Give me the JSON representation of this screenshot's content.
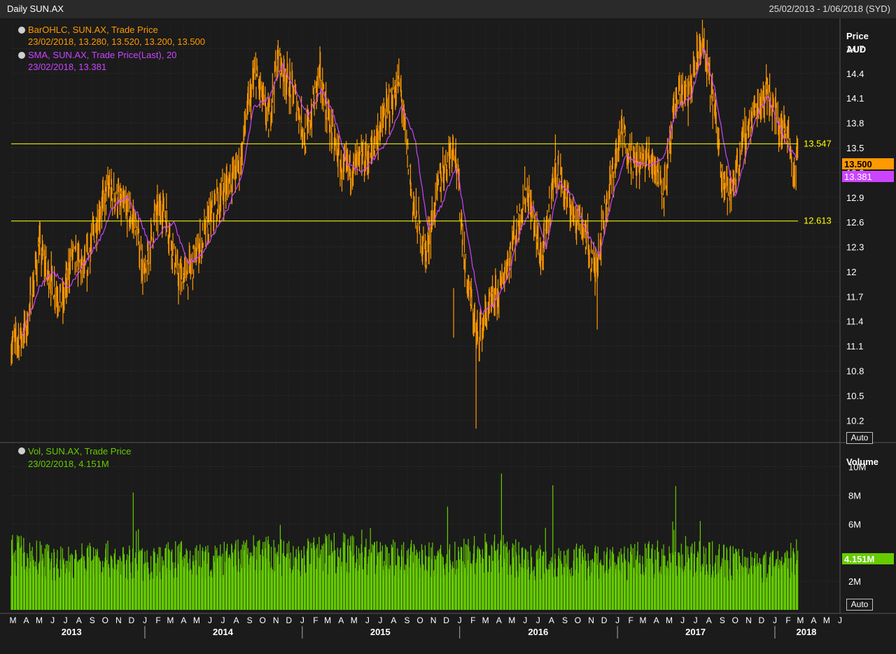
{
  "window": {
    "title": "Daily SUN.AX",
    "date_range": "25/02/2013 - 1/06/2018 (SYD)"
  },
  "price_panel": {
    "legend": [
      {
        "label": "BarOHLC, SUN.AX, Trade Price",
        "values": "23/02/2018, 13.280, 13.520, 13.200, 13.500",
        "color": "#ff9900"
      },
      {
        "label": "SMA, SUN.AX, Trade Price(Last),  20",
        "values": "23/02/2018, 13.381",
        "color": "#cc44ff"
      }
    ],
    "axis_title": "Price",
    "axis_unit": "AUD",
    "last_price_badge": "13.500",
    "sma_badge": "13.381",
    "auto_label": "Auto"
  },
  "volume_panel": {
    "legend": {
      "label": "Vol, SUN.AX, Trade Price",
      "values": "23/02/2018, 4.151M",
      "color": "#66cc00"
    },
    "axis_title": "Volume",
    "last_volume_badge": "4.151M",
    "auto_label": "Auto"
  },
  "colors": {
    "background": "#1b1b1b",
    "grid": "#333333",
    "price": "#ff9900",
    "sma": "#cc44ff",
    "volume": "#66cc00",
    "hline": "#ffff00"
  },
  "chart_data": [
    {
      "type": "line",
      "title": "Daily SUN.AX",
      "ylabel": "Price AUD",
      "ylim": [
        10.1,
        15.0
      ],
      "y_ticks": [
        "14.7",
        "14.4",
        "14.1",
        "13.8",
        "13.5",
        "13.2",
        "12.9",
        "12.6",
        "12.3",
        "12",
        "11.7",
        "11.4",
        "11.1",
        "10.8",
        "10.5",
        "10.2"
      ],
      "x_month_labels": [
        "M",
        "A",
        "M",
        "J",
        "J",
        "A",
        "S",
        "O",
        "N",
        "D",
        "J",
        "F",
        "M",
        "A",
        "M",
        "J",
        "J",
        "A",
        "S",
        "O",
        "N",
        "D",
        "J",
        "F",
        "M",
        "A",
        "M",
        "J",
        "J",
        "A",
        "S",
        "O",
        "N",
        "D",
        "J",
        "F",
        "M",
        "A",
        "M",
        "J",
        "J",
        "A",
        "S",
        "O",
        "N",
        "D",
        "J",
        "F",
        "M",
        "A",
        "M",
        "J",
        "J",
        "A",
        "S",
        "O",
        "N",
        "D",
        "J",
        "F",
        "M",
        "A",
        "M",
        "J"
      ],
      "x_year_labels": [
        "2013",
        "2014",
        "2015",
        "2016",
        "2017",
        "2018"
      ],
      "x_domain": [
        "2013-02-25",
        "2018-06-01"
      ],
      "horizontal_lines": [
        {
          "label": "13.547",
          "value": 13.547
        },
        {
          "label": "12.613",
          "value": 12.613
        }
      ],
      "series": [
        {
          "name": "BarOHLC, SUN.AX, Trade Price",
          "x": [
            "2013-02-25",
            "2013-04-01",
            "2013-05-01",
            "2013-05-20",
            "2013-06-25",
            "2013-07-15",
            "2013-08-15",
            "2013-09-15",
            "2013-10-10",
            "2013-11-10",
            "2013-12-10",
            "2014-01-01",
            "2014-01-25",
            "2014-02-15",
            "2014-03-20",
            "2014-04-15",
            "2014-05-15",
            "2014-06-15",
            "2014-07-15",
            "2014-08-10",
            "2014-08-25",
            "2014-09-15",
            "2014-10-15",
            "2014-11-05",
            "2014-12-15",
            "2015-01-10",
            "2015-02-10",
            "2015-03-05",
            "2015-04-05",
            "2015-05-05",
            "2015-06-05",
            "2015-07-05",
            "2015-08-15",
            "2015-09-15",
            "2015-10-15",
            "2015-11-15",
            "2015-12-20",
            "2016-01-15",
            "2016-02-10",
            "2016-03-05",
            "2016-04-05",
            "2016-05-05",
            "2016-06-05",
            "2016-07-10",
            "2016-08-10",
            "2016-09-10",
            "2016-10-10",
            "2016-11-10",
            "2016-12-05",
            "2017-01-10",
            "2017-02-10",
            "2017-03-20",
            "2017-04-20",
            "2017-05-20",
            "2017-06-15",
            "2017-07-15",
            "2017-08-10",
            "2017-09-01",
            "2017-09-20",
            "2017-10-20",
            "2017-11-20",
            "2017-12-15",
            "2018-01-15",
            "2018-02-01",
            "2018-02-15",
            "2018-02-23"
          ],
          "values": [
            11.1,
            11.3,
            12.3,
            12.0,
            11.6,
            12.2,
            12.0,
            12.7,
            13.0,
            12.8,
            12.6,
            11.9,
            12.7,
            12.8,
            11.9,
            12.0,
            12.4,
            12.8,
            13.1,
            13.3,
            13.9,
            14.4,
            13.8,
            14.6,
            14.1,
            13.6,
            14.4,
            13.8,
            13.2,
            13.3,
            13.4,
            13.8,
            14.3,
            12.8,
            12.2,
            13.1,
            13.6,
            12.0,
            11.2,
            11.5,
            11.8,
            12.4,
            13.0,
            12.1,
            13.3,
            12.8,
            12.6,
            12.0,
            12.8,
            13.7,
            13.3,
            13.4,
            13.0,
            14.2,
            14.1,
            14.8,
            14.1,
            13.2,
            12.9,
            13.6,
            14.0,
            14.2,
            13.7,
            13.7,
            13.1,
            13.5
          ]
        },
        {
          "name": "SMA, SUN.AX, Trade Price(Last),  20",
          "x": [
            "2013-03-20",
            "2013-05-01",
            "2013-06-01",
            "2013-07-10",
            "2013-08-15",
            "2013-09-20",
            "2013-10-20",
            "2013-11-20",
            "2013-12-15",
            "2014-01-15",
            "2014-02-10",
            "2014-03-10",
            "2014-04-10",
            "2014-05-10",
            "2014-06-15",
            "2014-07-15",
            "2014-08-15",
            "2014-09-10",
            "2014-10-15",
            "2014-11-15",
            "2014-12-15",
            "2015-01-15",
            "2015-02-15",
            "2015-03-15",
            "2015-04-15",
            "2015-05-20",
            "2015-06-20",
            "2015-07-20",
            "2015-08-20",
            "2015-09-20",
            "2015-10-20",
            "2015-11-20",
            "2015-12-25",
            "2016-01-20",
            "2016-02-20",
            "2016-03-20",
            "2016-04-20",
            "2016-05-20",
            "2016-06-20",
            "2016-07-20",
            "2016-08-20",
            "2016-09-20",
            "2016-10-20",
            "2016-11-20",
            "2016-12-20",
            "2017-01-20",
            "2017-02-20",
            "2017-03-20",
            "2017-04-20",
            "2017-05-20",
            "2017-06-20",
            "2017-07-20",
            "2017-08-15",
            "2017-09-10",
            "2017-10-01",
            "2017-10-25",
            "2017-11-20",
            "2017-12-15",
            "2018-01-10",
            "2018-02-01",
            "2018-02-23"
          ],
          "values": [
            11.2,
            11.8,
            12.0,
            11.8,
            12.1,
            12.4,
            12.8,
            12.9,
            12.7,
            12.3,
            12.5,
            12.6,
            12.1,
            12.2,
            12.5,
            12.8,
            13.2,
            14.0,
            14.1,
            14.5,
            14.2,
            13.9,
            14.2,
            13.9,
            13.3,
            13.2,
            13.4,
            13.6,
            14.0,
            13.6,
            12.5,
            12.8,
            13.3,
            12.4,
            11.5,
            11.6,
            11.9,
            12.5,
            12.8,
            12.3,
            13.1,
            12.9,
            12.5,
            12.2,
            12.9,
            13.4,
            13.3,
            13.3,
            13.4,
            14.0,
            14.1,
            14.7,
            14.2,
            13.4,
            12.9,
            13.4,
            13.9,
            14.1,
            13.8,
            13.5,
            13.381
          ]
        }
      ]
    },
    {
      "type": "bar",
      "title": "Vol, SUN.AX, Trade Price",
      "ylabel": "Volume",
      "ylim": [
        0,
        11000000
      ],
      "y_ticks": [
        "10M",
        "8M",
        "6M",
        "2M"
      ],
      "x_domain": [
        "2013-02-25",
        "2018-06-01"
      ],
      "series": [
        {
          "name": "Vol, SUN.AX, Trade Price",
          "x": [
            "2013-03",
            "2013-06",
            "2013-09",
            "2013-12",
            "2014-03",
            "2014-06",
            "2014-09",
            "2014-12",
            "2015-03",
            "2015-06",
            "2015-09",
            "2015-12",
            "2016-03",
            "2016-06",
            "2016-09",
            "2016-12",
            "2017-03",
            "2017-06",
            "2017-09",
            "2017-12",
            "2018-02"
          ],
          "values": [
            4200000,
            3600000,
            4000000,
            3500000,
            3900000,
            3700000,
            4300000,
            3800000,
            4600000,
            4000000,
            3900000,
            3800000,
            4400000,
            3700000,
            3800000,
            3600000,
            3900000,
            3900000,
            3700000,
            3300000,
            4151000
          ]
        }
      ]
    }
  ]
}
